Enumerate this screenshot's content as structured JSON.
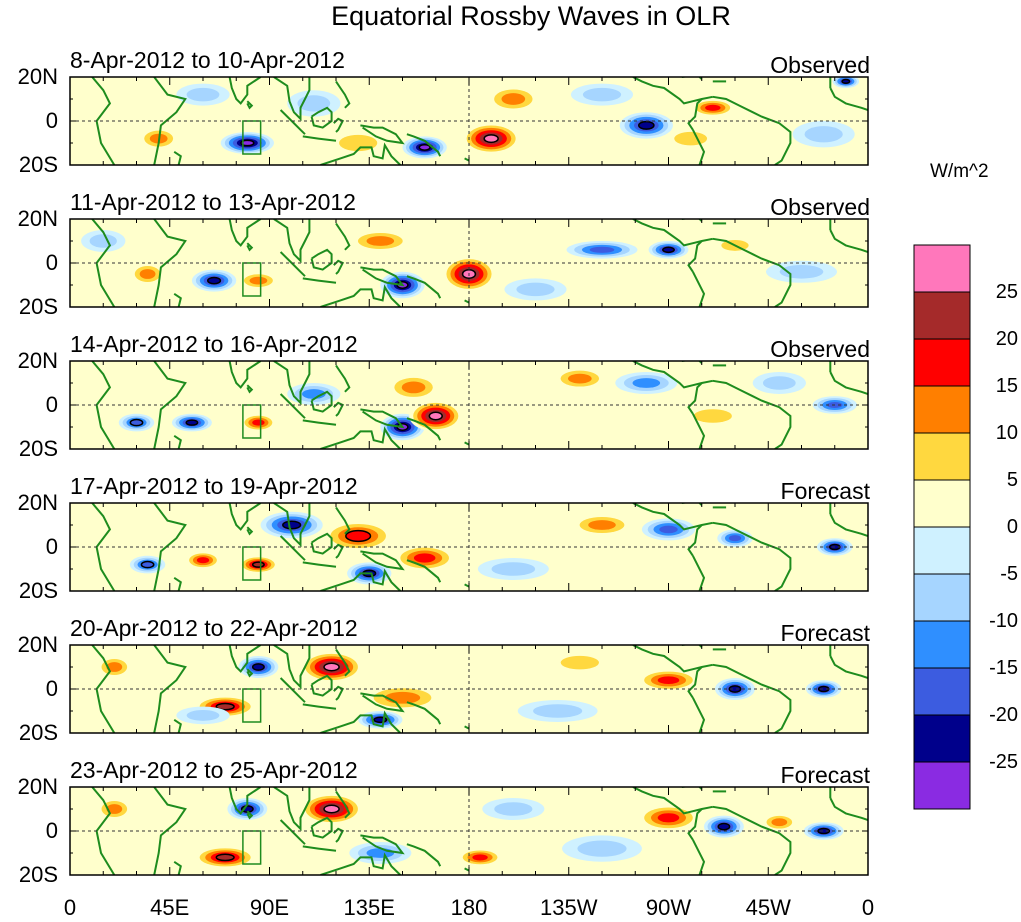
{
  "title": "Equatorial Rossby Waves in OLR",
  "colorbar": {
    "unit": "W/m^2",
    "colors": [
      "#ff77bb",
      "#a52a2a",
      "#ff0000",
      "#ff7f00",
      "#ffd83f",
      "#ffffcc",
      "#cff1ff",
      "#a6d5ff",
      "#2f8fff",
      "#3c5ce0",
      "#00008b",
      "#8a2be2"
    ],
    "labels": [
      "25",
      "20",
      "15",
      "10",
      "5",
      "0",
      "-5",
      "-10",
      "-15",
      "-20",
      "-25"
    ]
  },
  "lat_labels": [
    "20N",
    "0",
    "20S"
  ],
  "lon_labels": [
    "0",
    "45E",
    "90E",
    "135E",
    "180",
    "135W",
    "90W",
    "45W",
    "0"
  ],
  "panels": [
    {
      "date": "8-Apr-2012 to 10-Apr-2012",
      "kind": "Observed",
      "anomalies": [
        {
          "lon": 80,
          "lat": -10,
          "value": -26,
          "rx": 12,
          "ry": 5
        },
        {
          "lon": 40,
          "lat": -8,
          "value": 14,
          "rx": 9,
          "ry": 5
        },
        {
          "lon": 160,
          "lat": -12,
          "value": -26,
          "rx": 10,
          "ry": 5
        },
        {
          "lon": 190,
          "lat": -8,
          "value": 27,
          "rx": 13,
          "ry": 7
        },
        {
          "lon": 130,
          "lat": -10,
          "value": 10,
          "rx": 14,
          "ry": 6
        },
        {
          "lon": 110,
          "lat": 8,
          "value": -8,
          "rx": 12,
          "ry": 6
        },
        {
          "lon": 200,
          "lat": 10,
          "value": 12,
          "rx": 12,
          "ry": 6
        },
        {
          "lon": 260,
          "lat": -2,
          "value": -22,
          "rx": 12,
          "ry": 6
        },
        {
          "lon": 290,
          "lat": 6,
          "value": 16,
          "rx": 10,
          "ry": 4
        },
        {
          "lon": 280,
          "lat": -8,
          "value": 8,
          "rx": 12,
          "ry": 5
        },
        {
          "lon": 340,
          "lat": -6,
          "value": -8,
          "rx": 14,
          "ry": 6
        },
        {
          "lon": 350,
          "lat": 18,
          "value": -22,
          "rx": 6,
          "ry": 3
        },
        {
          "lon": 60,
          "lat": 12,
          "value": -7,
          "rx": 12,
          "ry": 5
        },
        {
          "lon": 240,
          "lat": 12,
          "value": -10,
          "rx": 14,
          "ry": 5
        }
      ]
    },
    {
      "date": "11-Apr-2012 to 13-Apr-2012",
      "kind": "Observed",
      "anomalies": [
        {
          "lon": 65,
          "lat": -8,
          "value": -24,
          "rx": 10,
          "ry": 5
        },
        {
          "lon": 35,
          "lat": -5,
          "value": 15,
          "rx": 8,
          "ry": 5
        },
        {
          "lon": 85,
          "lat": -8,
          "value": 12,
          "rx": 9,
          "ry": 4
        },
        {
          "lon": 150,
          "lat": -10,
          "value": -26,
          "rx": 10,
          "ry": 6
        },
        {
          "lon": 180,
          "lat": -5,
          "value": 27,
          "rx": 12,
          "ry": 8
        },
        {
          "lon": 140,
          "lat": 10,
          "value": 12,
          "rx": 14,
          "ry": 5
        },
        {
          "lon": 240,
          "lat": 6,
          "value": -16,
          "rx": 16,
          "ry": 4
        },
        {
          "lon": 270,
          "lat": 6,
          "value": -22,
          "rx": 9,
          "ry": 4
        },
        {
          "lon": 300,
          "lat": 8,
          "value": 10,
          "rx": 10,
          "ry": 4
        },
        {
          "lon": 210,
          "lat": -12,
          "value": -8,
          "rx": 14,
          "ry": 5
        },
        {
          "lon": 330,
          "lat": -4,
          "value": -8,
          "rx": 16,
          "ry": 5
        },
        {
          "lon": 15,
          "lat": 10,
          "value": -6,
          "rx": 10,
          "ry": 5
        }
      ]
    },
    {
      "date": "14-Apr-2012 to 16-Apr-2012",
      "kind": "Observed",
      "anomalies": [
        {
          "lon": 30,
          "lat": -8,
          "value": -20,
          "rx": 8,
          "ry": 4
        },
        {
          "lon": 55,
          "lat": -8,
          "value": -24,
          "rx": 9,
          "ry": 4
        },
        {
          "lon": 85,
          "lat": -8,
          "value": 18,
          "rx": 8,
          "ry": 4
        },
        {
          "lon": 150,
          "lat": -10,
          "value": -26,
          "rx": 10,
          "ry": 6
        },
        {
          "lon": 165,
          "lat": -5,
          "value": 27,
          "rx": 12,
          "ry": 7
        },
        {
          "lon": 155,
          "lat": 8,
          "value": 12,
          "rx": 12,
          "ry": 6
        },
        {
          "lon": 110,
          "lat": 5,
          "value": -12,
          "rx": 12,
          "ry": 5
        },
        {
          "lon": 230,
          "lat": 12,
          "value": 12,
          "rx": 12,
          "ry": 5
        },
        {
          "lon": 260,
          "lat": 10,
          "value": -14,
          "rx": 14,
          "ry": 5
        },
        {
          "lon": 290,
          "lat": -5,
          "value": 8,
          "rx": 14,
          "ry": 5
        },
        {
          "lon": 345,
          "lat": 0,
          "value": -16,
          "rx": 10,
          "ry": 4
        },
        {
          "lon": 320,
          "lat": 10,
          "value": -8,
          "rx": 12,
          "ry": 5
        }
      ]
    },
    {
      "date": "17-Apr-2012 to 19-Apr-2012",
      "kind": "Forecast",
      "anomalies": [
        {
          "lon": 35,
          "lat": -8,
          "value": -20,
          "rx": 8,
          "ry": 4
        },
        {
          "lon": 60,
          "lat": -6,
          "value": 16,
          "rx": 8,
          "ry": 4
        },
        {
          "lon": 85,
          "lat": -8,
          "value": 25,
          "rx": 9,
          "ry": 4
        },
        {
          "lon": 100,
          "lat": 10,
          "value": -22,
          "rx": 14,
          "ry": 6
        },
        {
          "lon": 130,
          "lat": 5,
          "value": 20,
          "rx": 16,
          "ry": 7
        },
        {
          "lon": 160,
          "lat": -5,
          "value": 18,
          "rx": 14,
          "ry": 6
        },
        {
          "lon": 135,
          "lat": -12,
          "value": -24,
          "rx": 10,
          "ry": 5
        },
        {
          "lon": 240,
          "lat": 10,
          "value": 12,
          "rx": 14,
          "ry": 5
        },
        {
          "lon": 270,
          "lat": 8,
          "value": -18,
          "rx": 12,
          "ry": 5
        },
        {
          "lon": 300,
          "lat": 4,
          "value": -18,
          "rx": 8,
          "ry": 4
        },
        {
          "lon": 345,
          "lat": 0,
          "value": -22,
          "rx": 8,
          "ry": 4
        },
        {
          "lon": 200,
          "lat": -10,
          "value": -8,
          "rx": 16,
          "ry": 5
        }
      ]
    },
    {
      "date": "20-Apr-2012 to 22-Apr-2012",
      "kind": "Forecast",
      "anomalies": [
        {
          "lon": 85,
          "lat": 10,
          "value": -24,
          "rx": 9,
          "ry": 5
        },
        {
          "lon": 118,
          "lat": 10,
          "value": 26,
          "rx": 14,
          "ry": 7
        },
        {
          "lon": 70,
          "lat": -8,
          "value": 24,
          "rx": 14,
          "ry": 5
        },
        {
          "lon": 150,
          "lat": -4,
          "value": 14,
          "rx": 18,
          "ry": 6
        },
        {
          "lon": 140,
          "lat": -14,
          "value": -22,
          "rx": 10,
          "ry": 4
        },
        {
          "lon": 60,
          "lat": -12,
          "value": -10,
          "rx": 12,
          "ry": 4
        },
        {
          "lon": 270,
          "lat": 4,
          "value": 16,
          "rx": 14,
          "ry": 5
        },
        {
          "lon": 300,
          "lat": 0,
          "value": -22,
          "rx": 9,
          "ry": 5
        },
        {
          "lon": 340,
          "lat": 0,
          "value": -22,
          "rx": 8,
          "ry": 4
        },
        {
          "lon": 20,
          "lat": 10,
          "value": 12,
          "rx": 8,
          "ry": 5
        },
        {
          "lon": 220,
          "lat": -10,
          "value": -10,
          "rx": 18,
          "ry": 5
        },
        {
          "lon": 230,
          "lat": 12,
          "value": 10,
          "rx": 14,
          "ry": 5
        }
      ]
    },
    {
      "date": "23-Apr-2012 to 25-Apr-2012",
      "kind": "Forecast",
      "anomalies": [
        {
          "lon": 80,
          "lat": 10,
          "value": -24,
          "rx": 9,
          "ry": 5
        },
        {
          "lon": 118,
          "lat": 10,
          "value": 26,
          "rx": 14,
          "ry": 7
        },
        {
          "lon": 70,
          "lat": -12,
          "value": 22,
          "rx": 14,
          "ry": 5
        },
        {
          "lon": 140,
          "lat": -10,
          "value": -14,
          "rx": 14,
          "ry": 5
        },
        {
          "lon": 185,
          "lat": -12,
          "value": 16,
          "rx": 10,
          "ry": 4
        },
        {
          "lon": 270,
          "lat": 6,
          "value": 18,
          "rx": 14,
          "ry": 6
        },
        {
          "lon": 295,
          "lat": 2,
          "value": -22,
          "rx": 9,
          "ry": 5
        },
        {
          "lon": 320,
          "lat": 4,
          "value": 12,
          "rx": 8,
          "ry": 4
        },
        {
          "lon": 340,
          "lat": 0,
          "value": -22,
          "rx": 9,
          "ry": 4
        },
        {
          "lon": 20,
          "lat": 10,
          "value": 12,
          "rx": 8,
          "ry": 5
        },
        {
          "lon": 240,
          "lat": -8,
          "value": -10,
          "rx": 18,
          "ry": 6
        },
        {
          "lon": 200,
          "lat": 10,
          "value": -8,
          "rx": 14,
          "ry": 5
        }
      ]
    }
  ]
}
